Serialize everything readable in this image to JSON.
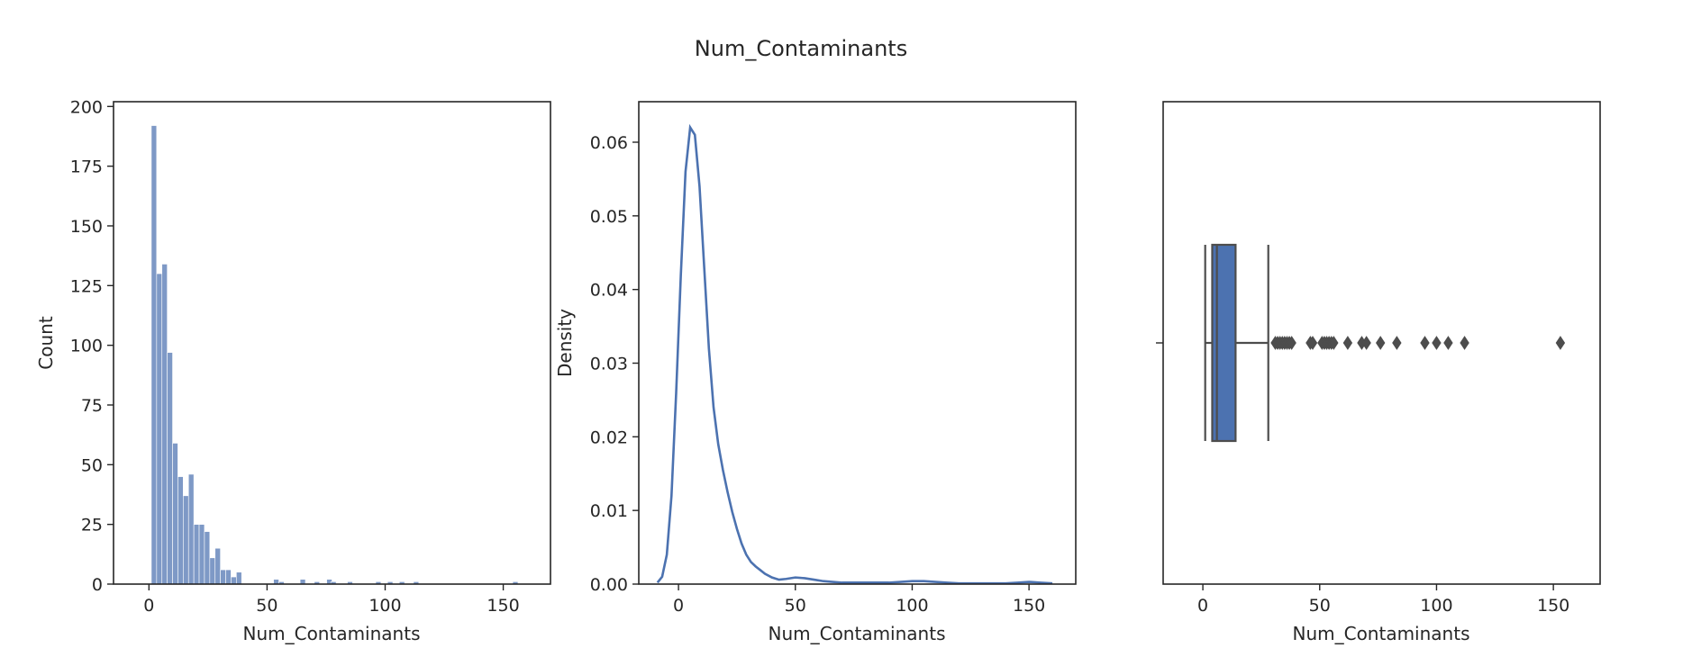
{
  "figure": {
    "title": "Num_Contaminants"
  },
  "colors": {
    "series": "#4c72b0",
    "hist_fill": "#4c72b0",
    "box_fill": "#4c72b0",
    "axis": "#262626"
  },
  "chart_data": [
    {
      "type": "bar",
      "subtype": "histogram",
      "xlabel": "Num_Contaminants",
      "ylabel": "Count",
      "xlim": [
        -15,
        170
      ],
      "ylim": [
        0,
        202
      ],
      "xticks": [
        0,
        50,
        100,
        150
      ],
      "yticks": [
        0,
        25,
        50,
        75,
        100,
        125,
        150,
        175,
        200
      ],
      "bin_width": 2.25,
      "bin_start": 1.0,
      "counts": [
        192,
        130,
        134,
        97,
        59,
        45,
        37,
        46,
        25,
        25,
        22,
        11,
        15,
        6,
        6,
        3,
        5,
        0,
        0,
        0,
        0,
        0,
        0,
        2,
        1,
        0,
        0,
        0,
        2,
        0,
        0,
        0,
        0,
        2,
        0,
        0,
        0,
        0,
        0,
        0,
        0,
        0,
        0,
        0,
        0,
        0,
        0,
        0,
        0
      ],
      "sparse_bins": [
        {
          "x": 70,
          "count": 1
        },
        {
          "x": 77,
          "count": 1
        },
        {
          "x": 84,
          "count": 1
        },
        {
          "x": 96,
          "count": 1
        },
        {
          "x": 101,
          "count": 1
        },
        {
          "x": 106,
          "count": 1
        },
        {
          "x": 112,
          "count": 1
        },
        {
          "x": 154,
          "count": 1
        }
      ]
    },
    {
      "type": "line",
      "subtype": "kde",
      "xlabel": "Num_Contaminants",
      "ylabel": "Density",
      "xlim": [
        -17,
        170
      ],
      "ylim": [
        0,
        0.0655
      ],
      "xticks": [
        0,
        50,
        100,
        150
      ],
      "yticks": [
        0.0,
        0.01,
        0.02,
        0.03,
        0.04,
        0.05,
        0.06
      ],
      "ytick_labels": [
        "0.00",
        "0.01",
        "0.02",
        "0.03",
        "0.04",
        "0.05",
        "0.06"
      ],
      "x": [
        -9,
        -7,
        -5,
        -3,
        -1,
        1,
        3,
        5,
        7,
        9,
        11,
        13,
        15,
        17,
        19,
        21,
        23,
        25,
        27,
        29,
        31,
        33,
        35,
        37,
        40,
        43,
        46,
        50,
        54,
        58,
        62,
        66,
        70,
        75,
        80,
        85,
        90,
        95,
        100,
        105,
        110,
        115,
        120,
        125,
        130,
        135,
        140,
        145,
        150,
        155,
        160
      ],
      "y": [
        0.0002,
        0.001,
        0.004,
        0.012,
        0.026,
        0.042,
        0.056,
        0.062,
        0.061,
        0.054,
        0.043,
        0.032,
        0.024,
        0.019,
        0.0155,
        0.0125,
        0.0098,
        0.0075,
        0.0055,
        0.004,
        0.003,
        0.0024,
        0.0019,
        0.0014,
        0.0009,
        0.0006,
        0.0007,
        0.0009,
        0.0008,
        0.0006,
        0.0004,
        0.0003,
        0.0002,
        0.0002,
        0.0002,
        0.0002,
        0.0002,
        0.0003,
        0.0004,
        0.0004,
        0.0003,
        0.0002,
        0.0001,
        0.0001,
        0.0001,
        0.0001,
        0.0001,
        0.0002,
        0.0003,
        0.0002,
        0.0001
      ]
    },
    {
      "type": "box",
      "xlabel": "Num_Contaminants",
      "xlim": [
        -17,
        170
      ],
      "xticks": [
        0,
        50,
        100,
        150
      ],
      "whisker_low": 1,
      "q1": 4,
      "median": 6,
      "q3": 14,
      "whisker_high": 28,
      "outliers": [
        31,
        32,
        33,
        34,
        35,
        36,
        37,
        38,
        46,
        47,
        51,
        52,
        53,
        54,
        55,
        56,
        62,
        68,
        70,
        76,
        83,
        95,
        100,
        105,
        112,
        153
      ]
    }
  ]
}
